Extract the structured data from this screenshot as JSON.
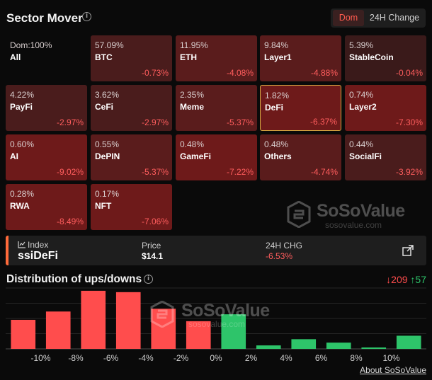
{
  "header": {
    "title": "Sector Mover",
    "toggle": {
      "active": "Dom",
      "inactive": "24H Change"
    }
  },
  "tiles": [
    {
      "dom": "Dom:100%",
      "name": "All",
      "change": ""
    },
    {
      "dom": "57.09%",
      "name": "BTC",
      "change": "-0.73%"
    },
    {
      "dom": "11.95%",
      "name": "ETH",
      "change": "-4.08%"
    },
    {
      "dom": "9.84%",
      "name": "Layer1",
      "change": "-4.88%"
    },
    {
      "dom": "5.39%",
      "name": "StableCoin",
      "change": "-0.04%"
    },
    {
      "dom": "4.22%",
      "name": "PayFi",
      "change": "-2.97%"
    },
    {
      "dom": "3.62%",
      "name": "CeFi",
      "change": "-2.97%"
    },
    {
      "dom": "2.35%",
      "name": "Meme",
      "change": "-5.37%"
    },
    {
      "dom": "1.82%",
      "name": "DeFi",
      "change": "-6.37%"
    },
    {
      "dom": "0.74%",
      "name": "Layer2",
      "change": "-7.30%"
    },
    {
      "dom": "0.60%",
      "name": "AI",
      "change": "-9.02%"
    },
    {
      "dom": "0.55%",
      "name": "DePIN",
      "change": "-5.37%"
    },
    {
      "dom": "0.48%",
      "name": "GameFi",
      "change": "-7.22%"
    },
    {
      "dom": "0.48%",
      "name": "Others",
      "change": "-4.74%"
    },
    {
      "dom": "0.44%",
      "name": "SocialFi",
      "change": "-3.92%"
    },
    {
      "dom": "0.28%",
      "name": "RWA",
      "change": "-8.49%"
    },
    {
      "dom": "0.17%",
      "name": "NFT",
      "change": "-7.06%"
    }
  ],
  "watermark": {
    "brand": "SoSoValue",
    "domain": "sosovalue.com"
  },
  "index": {
    "label": "Index",
    "name": "ssiDeFi",
    "price_label": "Price",
    "price_value": "$14.1",
    "change_label": "24H CHG",
    "change_value": "-6.53%"
  },
  "distribution": {
    "title": "Distribution of ups/downs",
    "down_count": "209",
    "up_count": "57",
    "down_arrow": "↓",
    "up_arrow": "↑"
  },
  "colors": {
    "down": "#ff4d4d",
    "up": "#2ec46a",
    "accent": "#ff6a3a",
    "selected_border": "#d4a640"
  },
  "chart_data": {
    "type": "bar",
    "bins": [
      {
        "value": 42,
        "dir": "down"
      },
      {
        "value": 54,
        "dir": "down"
      },
      {
        "value": 84,
        "dir": "down"
      },
      {
        "value": 82,
        "dir": "down"
      },
      {
        "value": 58,
        "dir": "down"
      },
      {
        "value": 40,
        "dir": "down"
      },
      {
        "value": 50,
        "dir": "up"
      },
      {
        "value": 5,
        "dir": "up"
      },
      {
        "value": 14,
        "dir": "up"
      },
      {
        "value": 9,
        "dir": "up"
      },
      {
        "value": 2,
        "dir": "up"
      },
      {
        "value": 19,
        "dir": "up"
      }
    ],
    "tick_labels": [
      "-10%",
      "-8%",
      "-6%",
      "-4%",
      "-2%",
      "0%",
      "2%",
      "4%",
      "6%",
      "8%",
      "10%"
    ],
    "ymax": 88,
    "grid": true
  },
  "footer": {
    "about": "About SoSoValue"
  }
}
